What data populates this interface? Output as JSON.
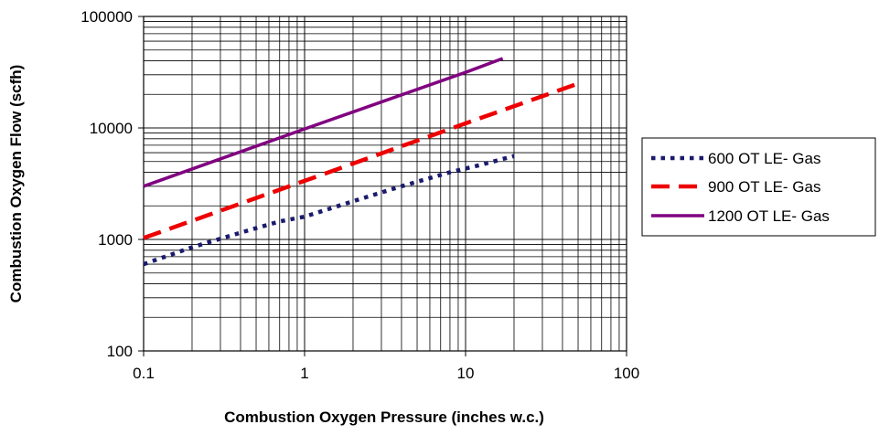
{
  "chart_data": {
    "type": "line",
    "title": "",
    "xlabel": "Combustion Oxygen Pressure (inches w.c.)",
    "ylabel": "Combustion Oxygen Flow (scfh)",
    "x_scale": "log",
    "y_scale": "log",
    "xlim": [
      0.1,
      100
    ],
    "ylim": [
      100,
      100000
    ],
    "x_ticks": [
      "0.1",
      "1",
      "10",
      "100"
    ],
    "y_ticks": [
      "100",
      "1000",
      "10000",
      "100000"
    ],
    "grid": true,
    "legend_position": "right",
    "series": [
      {
        "name": "600 OT LE- Gas",
        "color": "#1a1a6e",
        "style": "dotted",
        "x": [
          0.1,
          0.2,
          0.4,
          0.7,
          1,
          2,
          4,
          8,
          12,
          20
        ],
        "y": [
          600,
          850,
          1150,
          1450,
          1600,
          2200,
          3000,
          4000,
          4600,
          5600
        ]
      },
      {
        "name": "900 OT LE- Gas",
        "color": "#ee0000",
        "style": "dashed",
        "x": [
          0.1,
          1,
          10,
          50
        ],
        "y": [
          1030,
          3350,
          11000,
          25000
        ]
      },
      {
        "name": "1200 OT LE- Gas",
        "color": "#800080",
        "style": "solid",
        "x": [
          0.1,
          1,
          10,
          17
        ],
        "y": [
          3000,
          9800,
          31500,
          42000
        ]
      }
    ]
  }
}
